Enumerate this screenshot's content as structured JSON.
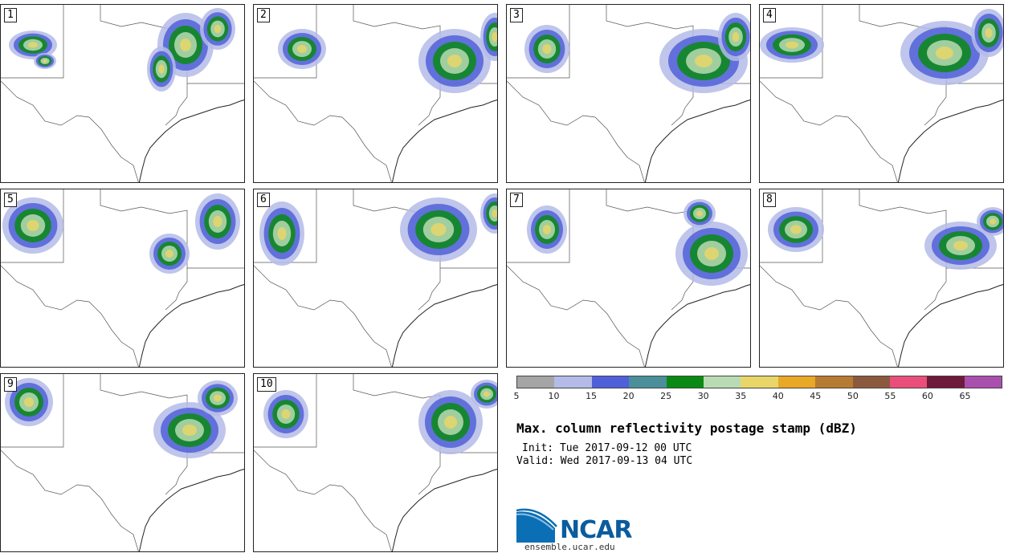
{
  "panels": [
    {
      "label": "1"
    },
    {
      "label": "2"
    },
    {
      "label": "3"
    },
    {
      "label": "4"
    },
    {
      "label": "5"
    },
    {
      "label": "6"
    },
    {
      "label": "7"
    },
    {
      "label": "8"
    },
    {
      "label": "9"
    },
    {
      "label": "10"
    }
  ],
  "colorbar": {
    "colors": [
      "#a5a5a5",
      "#b4bbe8",
      "#5060d8",
      "#4a8f9a",
      "#0a8a14",
      "#b9dbb3",
      "#e8d669",
      "#e9a826",
      "#b67b33",
      "#8b5a3e",
      "#e94f7a",
      "#6e1a3a",
      "#a94fae"
    ],
    "ticks": [
      "5",
      "10",
      "15",
      "20",
      "25",
      "30",
      "35",
      "40",
      "45",
      "50",
      "55",
      "60",
      "65"
    ]
  },
  "title": "Max. column reflectivity postage stamp (dBZ)",
  "init": "Init: Tue 2017-09-12 00 UTC",
  "valid": "Valid: Wed 2017-09-13 04 UTC",
  "logo": {
    "text": "NCAR",
    "site": "ensemble.ucar.edu"
  }
}
